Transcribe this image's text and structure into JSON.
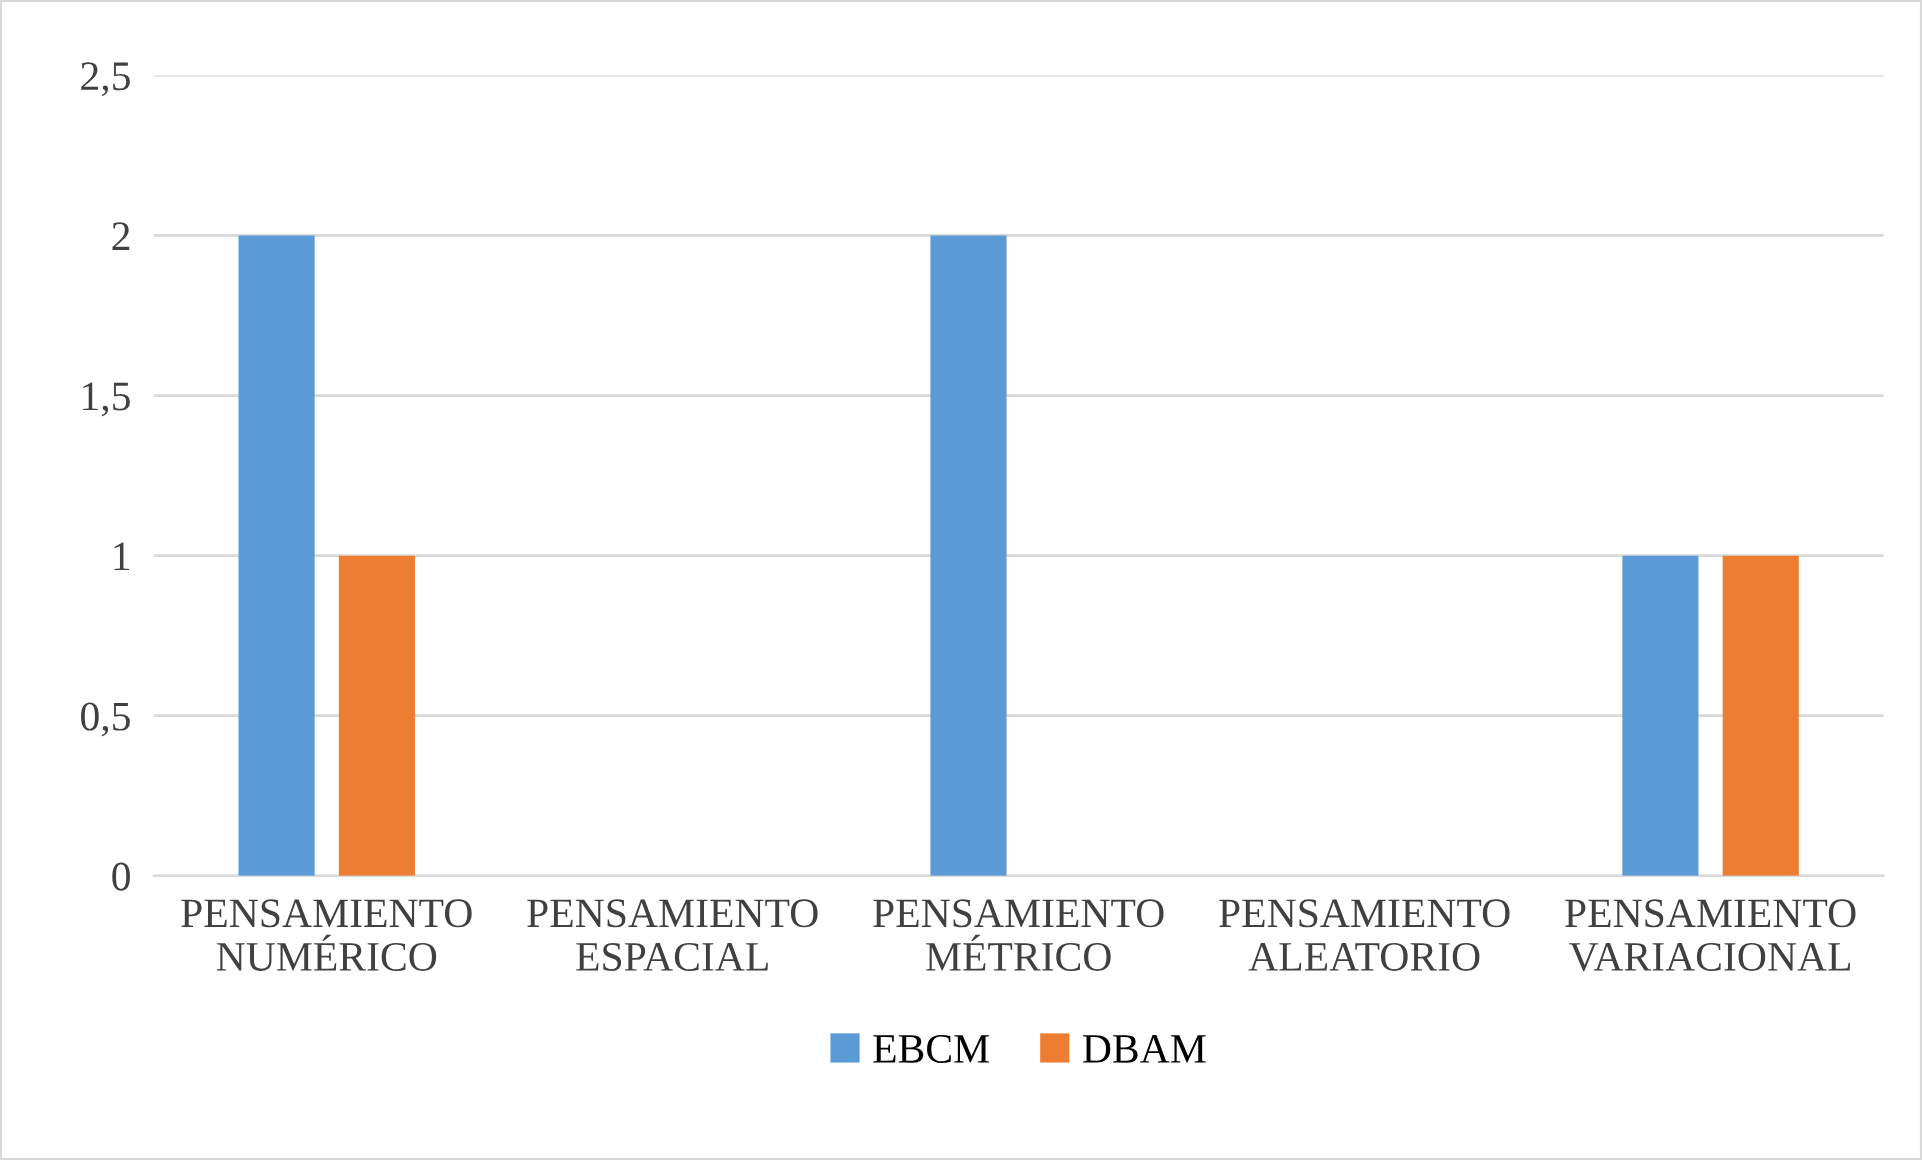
{
  "chart_data": {
    "type": "bar",
    "categories": [
      "PENSAMIENTO\nNUMÉRICO",
      "PENSAMIENTO\nESPACIAL",
      "PENSAMIENTO\nMÉTRICO",
      "PENSAMIENTO\nALEATORIO",
      "PENSAMIENTO\nVARIACIONAL"
    ],
    "series": [
      {
        "name": "EBCM",
        "color": "#5b9bd5",
        "values": [
          2,
          0,
          2,
          0,
          1
        ]
      },
      {
        "name": "DBAM",
        "color": "#ed7d31",
        "values": [
          1,
          0,
          0,
          0,
          1
        ]
      }
    ],
    "ylim": [
      0,
      2.5
    ],
    "yticks": [
      0,
      {
        "value": 0.5,
        "label": "0,5"
      },
      1,
      {
        "value": 1.5,
        "label": "1,5"
      },
      2,
      {
        "value": 2.5,
        "label": "2,5"
      }
    ],
    "grid": "y",
    "legend": "bottom"
  }
}
